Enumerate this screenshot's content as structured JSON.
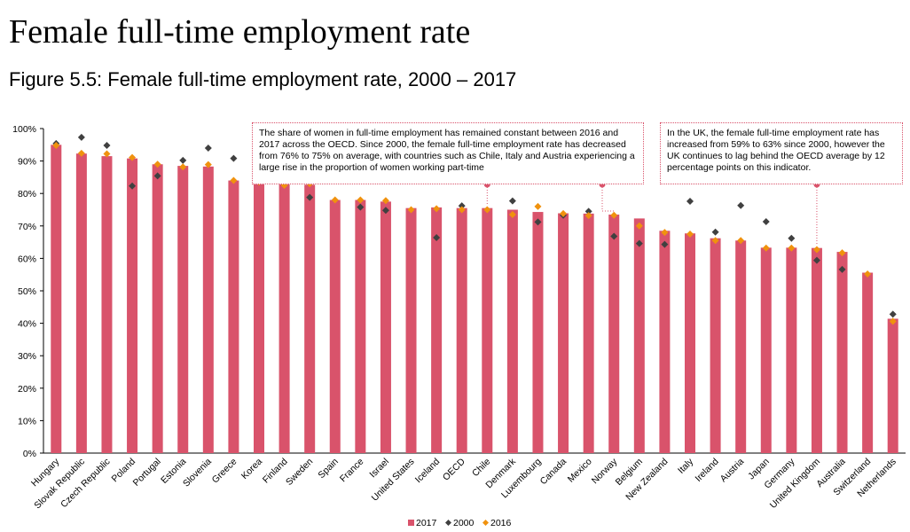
{
  "page": {
    "title": "Female full-time employment rate",
    "subtitle": "Figure 5.5: Female full-time employment rate, 2000 – 2017"
  },
  "annotations": [
    {
      "text": "The share of women in full-time employment has remained constant between 2016 and 2017 across the OECD. Since 2000, the female full-time employment rate has decreased from 76% to 75% on average, with countries such as Chile, Italy and Austria experiencing a large rise in the proportion of women working part-time",
      "points_to": [
        "Chile",
        "Norway"
      ]
    },
    {
      "text": "In the UK, the female full-time employment rate has increased from 59% to 63% since 2000, however the UK continues to lag behind the OECD average by 12 percentage points on this indicator.",
      "points_to": [
        "United Kingdom"
      ]
    }
  ],
  "chart_data": {
    "type": "bar",
    "categories": [
      "Hungary",
      "Slovak Republic",
      "Czech Republic",
      "Poland",
      "Portugal",
      "Estonia",
      "Slovenia",
      "Greece",
      "Korea",
      "Finland",
      "Sweden",
      "Spain",
      "France",
      "Israel",
      "United States",
      "Iceland",
      "OECD",
      "Chile",
      "Denmark",
      "Luxembourg",
      "Canada",
      "Mexico",
      "Norway",
      "Belgium",
      "New Zealand",
      "Italy",
      "Ireland",
      "Austria",
      "Japan",
      "Germany",
      "United Kingdom",
      "Australia",
      "Switzerland",
      "Netherlands"
    ],
    "series": [
      {
        "name": "2017",
        "kind": "bar",
        "color": "#d9536b",
        "values": [
          95,
          92.3,
          91.5,
          90.8,
          89,
          88.5,
          88.3,
          84,
          83.5,
          83,
          82.7,
          78,
          78,
          77.5,
          75.5,
          75.7,
          75.5,
          75.5,
          75,
          74.3,
          73.9,
          73.8,
          73.5,
          72.3,
          68.5,
          67.7,
          66.2,
          65.5,
          63.3,
          63.3,
          63.2,
          62,
          55.6,
          41.4
        ]
      },
      {
        "name": "2000",
        "kind": "marker",
        "color": "#404040",
        "values": [
          95.4,
          97.3,
          94.8,
          82.3,
          85.4,
          90.2,
          94,
          90.8,
          null,
          null,
          78.8,
          null,
          75.8,
          74.8,
          null,
          66.4,
          76.2,
          null,
          77.7,
          71.2,
          73.3,
          74.5,
          66.8,
          64.6,
          64.3,
          77.6,
          68.1,
          76.3,
          71.3,
          66.2,
          59.4,
          56.6,
          null,
          42.8
        ]
      },
      {
        "name": "2016",
        "kind": "marker",
        "color": "#f0920e",
        "values": [
          94.8,
          92.4,
          92.2,
          91.1,
          89,
          88.2,
          88.9,
          84,
          83.5,
          82.5,
          83,
          78,
          78,
          77.8,
          75,
          75.3,
          75,
          75,
          73.5,
          76,
          73.8,
          73.2,
          73.3,
          70,
          68,
          67.5,
          65.5,
          65.5,
          63.2,
          63.2,
          62.7,
          61.7,
          55.2,
          40.6
        ]
      }
    ],
    "ylim": [
      0,
      100
    ],
    "yticks": [
      "0%",
      "10%",
      "20%",
      "30%",
      "40%",
      "50%",
      "60%",
      "70%",
      "80%",
      "90%",
      "100%"
    ],
    "grid": false,
    "legend_position": "bottom-center"
  }
}
